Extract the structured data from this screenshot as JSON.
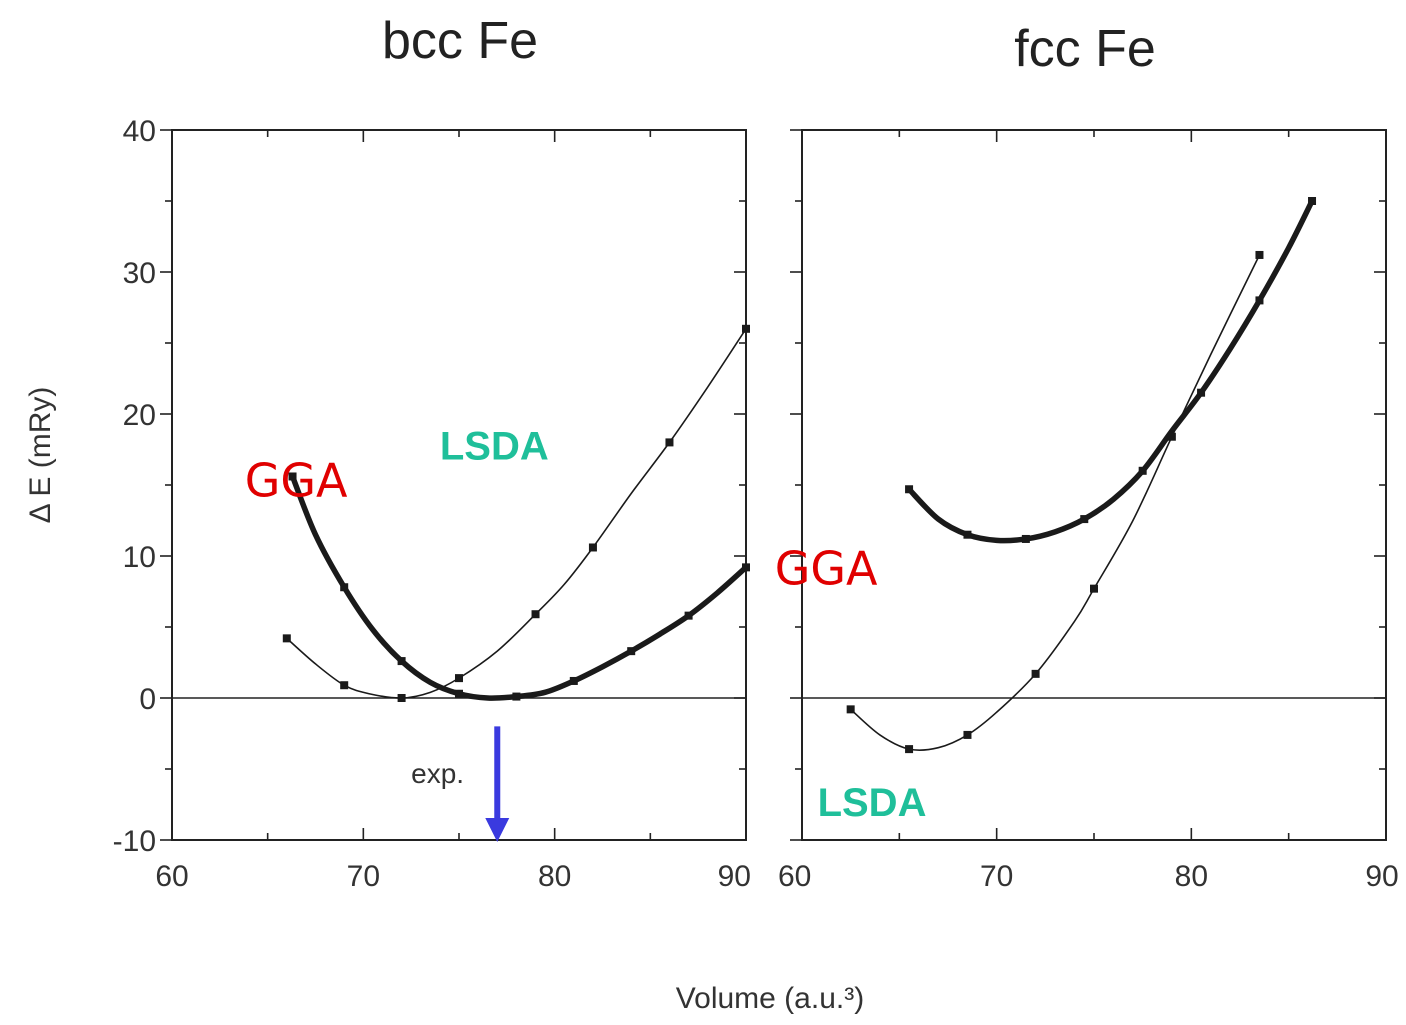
{
  "figure": {
    "xlabel": "Volume (a.u.³)",
    "ylabel": "Δ E (mRy)"
  },
  "chart_data": [
    {
      "type": "line",
      "title": "bcc Fe",
      "xlim": [
        60,
        90
      ],
      "ylim": [
        -10,
        40
      ],
      "xticks": [
        60,
        70,
        80,
        90
      ],
      "yticks": [
        -10,
        0,
        10,
        20,
        30,
        40
      ],
      "series": [
        {
          "name": "GGA",
          "style": "thick",
          "x": [
            66.3,
            67.5,
            69.0,
            70.5,
            72.0,
            73.5,
            75.0,
            76.5,
            78.0,
            79.5,
            81.0,
            82.5,
            84.0,
            85.5,
            87.0,
            88.5,
            90.0
          ],
          "y": [
            15.6,
            11.5,
            7.8,
            4.8,
            2.6,
            1.1,
            0.3,
            0.0,
            0.1,
            0.4,
            1.2,
            2.2,
            3.3,
            4.5,
            5.8,
            7.4,
            9.2
          ]
        },
        {
          "name": "LSDA",
          "style": "thin",
          "x": [
            66.0,
            67.5,
            69.0,
            70.3,
            72.0,
            73.5,
            75.0,
            77.0,
            79.0,
            80.5,
            82.0,
            84.0,
            86.0,
            88.0,
            90.0
          ],
          "y": [
            4.2,
            2.4,
            0.9,
            0.3,
            0.0,
            0.4,
            1.4,
            3.3,
            5.9,
            8.0,
            10.6,
            14.4,
            18.0,
            21.9,
            26.0
          ]
        }
      ],
      "annotations": [
        {
          "text": "GGA",
          "x": 63.8,
          "y": 14.2
        },
        {
          "text": "LSDA",
          "x": 74.0,
          "y": 16.8
        },
        {
          "text": "exp.",
          "x": 72.5,
          "y": -6.0
        }
      ],
      "exp_arrow": {
        "x": 77.0,
        "y_from": -2.0,
        "y_to": -10.0
      }
    },
    {
      "type": "line",
      "title": "fcc Fe",
      "xlim": [
        60,
        90
      ],
      "ylim": [
        -10,
        40
      ],
      "xticks": [
        60,
        70,
        80,
        90
      ],
      "yticks": [
        -10,
        0,
        10,
        20,
        30,
        40
      ],
      "series": [
        {
          "name": "GGA",
          "style": "thick",
          "x": [
            65.5,
            67.0,
            68.5,
            70.0,
            71.5,
            73.0,
            74.5,
            76.0,
            77.5,
            79.0,
            80.5,
            82.0,
            83.5,
            85.0,
            86.2
          ],
          "y": [
            14.7,
            12.6,
            11.5,
            11.1,
            11.2,
            11.7,
            12.6,
            14.0,
            16.0,
            18.8,
            21.5,
            24.6,
            28.0,
            31.7,
            35.0
          ]
        },
        {
          "name": "LSDA",
          "style": "thin",
          "x": [
            62.5,
            64.0,
            65.5,
            67.0,
            68.5,
            70.0,
            72.0,
            74.0,
            75.0,
            77.0,
            79.0,
            81.0,
            83.5
          ],
          "y": [
            -0.8,
            -2.6,
            -3.6,
            -3.5,
            -2.6,
            -1.0,
            1.7,
            5.4,
            7.7,
            12.5,
            18.4,
            24.2,
            31.2
          ]
        }
      ],
      "annotations": [
        {
          "text": "GGA",
          "x": 58.6,
          "y": 8.0
        },
        {
          "text": "LSDA",
          "x": 60.8,
          "y": -8.3
        }
      ]
    }
  ]
}
